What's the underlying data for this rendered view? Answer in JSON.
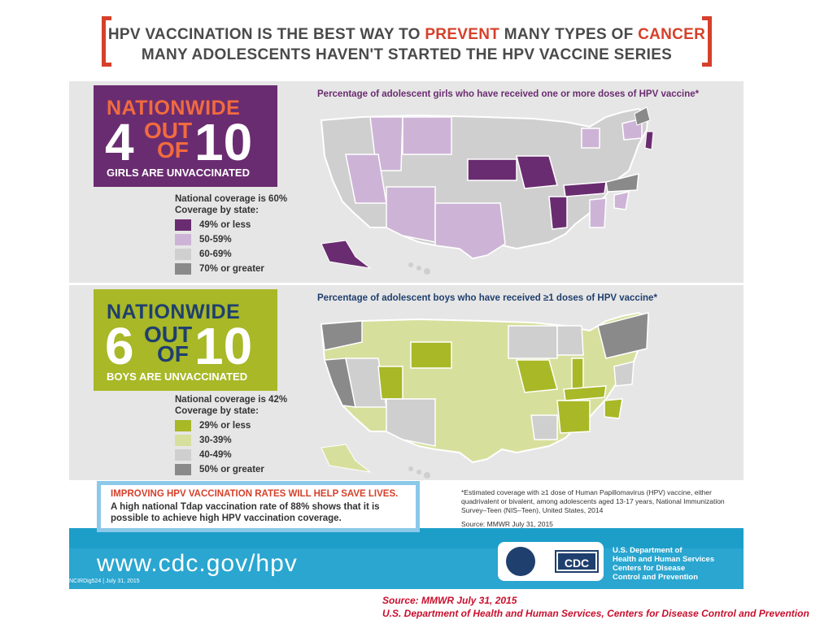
{
  "header": {
    "line1_pre": "HPV VACCINATION IS THE BEST WAY TO ",
    "line1_prevent": "PREVENT",
    "line1_mid": " MANY TYPES OF ",
    "line1_cancer": "CANCER",
    "line2": "MANY ADOLESCENTS HAVEN'T STARTED THE HPV VACCINE SERIES"
  },
  "girls": {
    "nationwide": "NATIONWIDE",
    "count": "4",
    "out": "OUT",
    "of": "OF",
    "total": "10",
    "subtitle": "GIRLS ARE UNVACCINATED",
    "legend_title": "National coverage is 60%",
    "legend_subtitle": "Coverage by state:",
    "legend": [
      {
        "label": "49% or less",
        "color": "#6a2c70"
      },
      {
        "label": "50-59%",
        "color": "#cdb4d6"
      },
      {
        "label": "60-69%",
        "color": "#cfcfcf"
      },
      {
        "label": "70% or greater",
        "color": "#8a8a8a"
      }
    ],
    "map_title": "Percentage of adolescent girls who have received one or more doses of HPV vaccine*"
  },
  "boys": {
    "nationwide": "NATIONWIDE",
    "count": "6",
    "out": "OUT",
    "of": "OF",
    "total": "10",
    "subtitle": "BOYS ARE UNVACCINATED",
    "legend_title": "National coverage is 42%",
    "legend_subtitle": "Coverage by state:",
    "legend": [
      {
        "label": "29% or less",
        "color": "#a8b827"
      },
      {
        "label": "30-39%",
        "color": "#d7df9c"
      },
      {
        "label": "40-49%",
        "color": "#cfcfcf"
      },
      {
        "label": "50% or greater",
        "color": "#8a8a8a"
      }
    ],
    "map_title": "Percentage of adolescent boys who have received ≥1 doses of HPV vaccine*"
  },
  "callout": {
    "headline": "IMPROVING HPV VACCINATION RATES WILL HELP SAVE LIVES.",
    "body": "A high national Tdap vaccination rate of 88% shows that it is possible to achieve high HPV vaccination coverage."
  },
  "footnote": {
    "text": "*Estimated coverage with ≥1 dose of Human Papillomavirus (HPV) vaccine, either quadrivalent or bivalent, among adolescents aged 13-17 years, National Immunization Survey–Teen (NIS–Teen), United States, 2014",
    "source": "Source: MMWR July 31, 2015"
  },
  "footer": {
    "url": "www.cdc.gov/hpv",
    "code": "NCIRDig524 | July 31, 2015",
    "cdc_logo": "CDC",
    "agency": [
      "U.S. Department of",
      "Health and Human Services",
      "Centers for Disease",
      "Control and Prevention"
    ]
  },
  "slide_source": {
    "line1": "Source: MMWR July 31, 2015",
    "line2": "U.S. Department of Health and Human Services, Centers for Disease Control and Prevention"
  }
}
